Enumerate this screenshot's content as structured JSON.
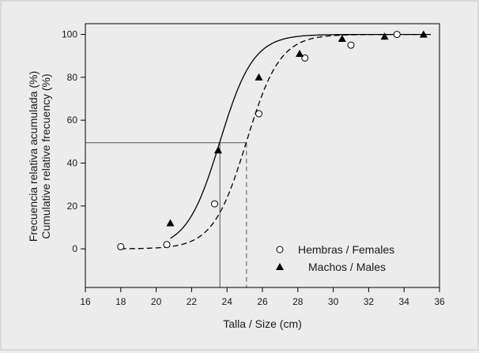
{
  "chart_data": {
    "type": "scatter",
    "title": "",
    "xlabel": "Talla / Size (cm)",
    "ylabel_line1": "Frecuencia relativa acumulada (%)",
    "ylabel_line2": "Cumulative relative frecuency (%)",
    "xlim": [
      16,
      36
    ],
    "ylim": [
      -18,
      105
    ],
    "x_ticks": [
      16,
      18,
      20,
      22,
      24,
      26,
      28,
      30,
      32,
      34,
      36
    ],
    "y_ticks": [
      0,
      20,
      40,
      60,
      80,
      100
    ],
    "grid": false,
    "legend_position": "bottom-right",
    "series": [
      {
        "name": "Hembras / Females",
        "marker": "open-circle",
        "line_style": "dashed",
        "points": [
          {
            "x": 18.0,
            "y": 1
          },
          {
            "x": 20.6,
            "y": 2
          },
          {
            "x": 23.3,
            "y": 21
          },
          {
            "x": 25.8,
            "y": 63
          },
          {
            "x": 28.4,
            "y": 89
          },
          {
            "x": 31.0,
            "y": 95
          },
          {
            "x": 33.6,
            "y": 100
          }
        ],
        "fit": {
          "model": "logistic",
          "L50": 25.1,
          "k": 1.06
        },
        "L50_reference": {
          "x": 25.1,
          "y": 49.5
        }
      },
      {
        "name": "Machos / Males",
        "marker": "filled-triangle",
        "line_style": "solid",
        "points": [
          {
            "x": 20.8,
            "y": 12
          },
          {
            "x": 23.5,
            "y": 46
          },
          {
            "x": 25.8,
            "y": 80
          },
          {
            "x": 28.1,
            "y": 91
          },
          {
            "x": 30.5,
            "y": 98
          },
          {
            "x": 32.9,
            "y": 99
          },
          {
            "x": 35.1,
            "y": 100
          }
        ],
        "fit": {
          "model": "logistic",
          "L50": 23.6,
          "k": 1.06
        },
        "L50_reference": {
          "x": 23.6,
          "y": 49.5
        }
      }
    ]
  }
}
